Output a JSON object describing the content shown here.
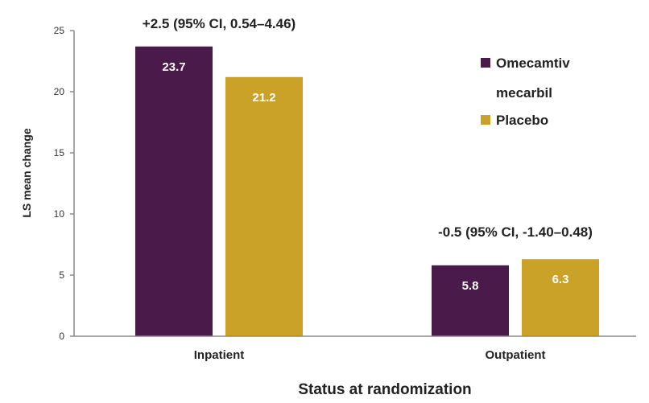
{
  "chart_data": {
    "type": "bar",
    "categories": [
      "Inpatient",
      "Outpatient"
    ],
    "series": [
      {
        "name": "Omecamtiv mecarbil",
        "color": "#4a1a4a",
        "values": [
          23.7,
          5.8
        ],
        "labels": [
          "23.7",
          "5.8"
        ]
      },
      {
        "name": "Placebo",
        "color": "#c9a227",
        "values": [
          21.2,
          6.3
        ],
        "labels": [
          "21.2",
          "6.3"
        ]
      }
    ],
    "xlabel": "Status at randomization",
    "ylabel": "LS mean change",
    "ylim": [
      0,
      25
    ],
    "yticks": [
      0,
      5,
      10,
      15,
      20,
      25
    ],
    "grid": false,
    "legend_position": "top-right",
    "legend_lines": [
      [
        "Omecamtiv",
        "mecarbil"
      ],
      [
        "Placebo"
      ]
    ],
    "annotations": [
      "+2.5 (95% CI, 0.54–4.46)",
      "-0.5 (95% CI, -1.40–0.48)"
    ]
  }
}
